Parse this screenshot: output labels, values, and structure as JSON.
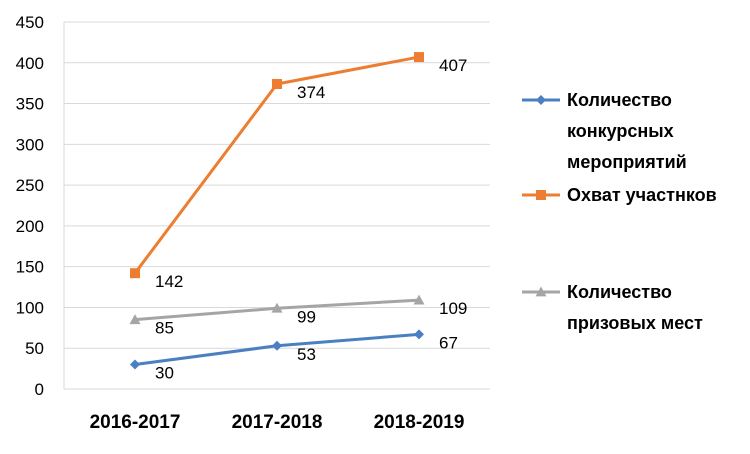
{
  "chart_data": {
    "type": "line",
    "title": "",
    "xlabel": "",
    "ylabel": "",
    "categories": [
      "2016-2017",
      "2017-2018",
      "2018-2019"
    ],
    "ylim": [
      0,
      450
    ],
    "yticks": [
      0,
      50,
      100,
      150,
      200,
      250,
      300,
      350,
      400,
      450
    ],
    "grid": true,
    "legend_position": "right",
    "series": [
      {
        "name": "Количество конкурсных мероприятий",
        "legend_lines": [
          "Количество",
          "конкурсных",
          "мероприятий"
        ],
        "values": [
          30,
          53,
          67
        ],
        "color": "#4a7fc1",
        "marker": "diamond"
      },
      {
        "name": "Охват участнков",
        "legend_lines": [
          "Охват участнков"
        ],
        "values": [
          142,
          374,
          407
        ],
        "color": "#ed7d31",
        "marker": "square"
      },
      {
        "name": "Количество призовых мест",
        "legend_lines": [
          "Количество",
          "призовых мест"
        ],
        "values": [
          85,
          99,
          109
        ],
        "color": "#a5a5a5",
        "marker": "triangle"
      }
    ]
  }
}
